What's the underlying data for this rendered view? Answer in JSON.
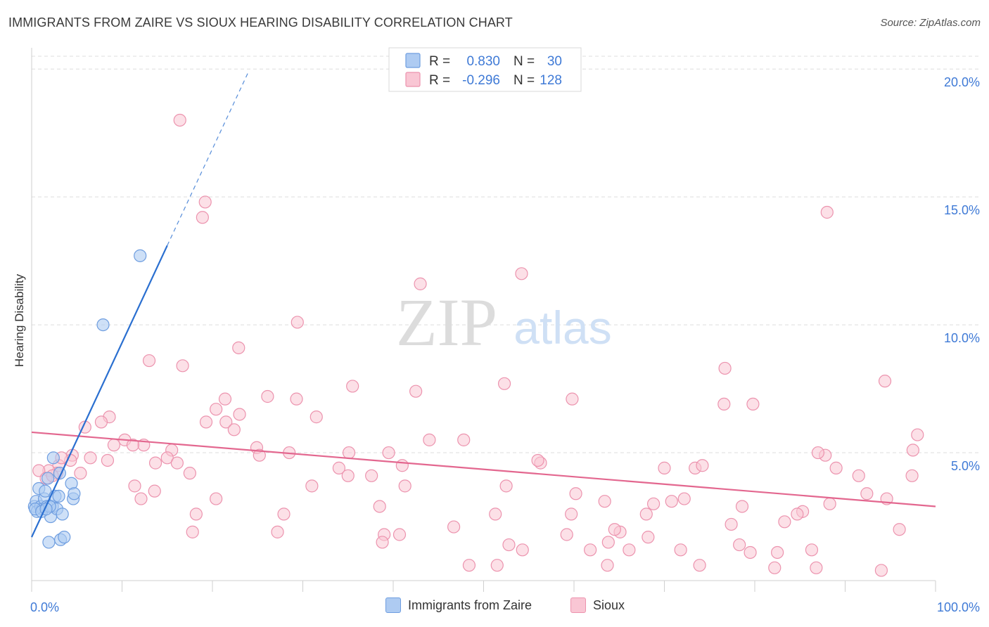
{
  "title": "IMMIGRANTS FROM ZAIRE VS SIOUX HEARING DISABILITY CORRELATION CHART",
  "source": "Source: ZipAtlas.com",
  "watermark": {
    "zip": "ZIP",
    "atlas": "atlas"
  },
  "colors": {
    "blue": "#6f9ee0",
    "blue_fill": "#aecbf2",
    "blue_line": "#2a6fd0",
    "pink": "#ec93ae",
    "pink_fill": "#f9c6d4",
    "pink_line": "#e3678f",
    "axis_text": "#3f7ad6"
  },
  "chart_data": {
    "type": "scatter",
    "title": "IMMIGRANTS FROM ZAIRE VS SIOUX HEARING DISABILITY CORRELATION CHART",
    "xlabel": "",
    "ylabel": "Hearing Disability",
    "xlim": [
      0,
      100
    ],
    "ylim": [
      0,
      20.5
    ],
    "x_tick_labels": [
      "0.0%",
      "100.0%"
    ],
    "y_ticks": [
      5,
      10,
      15,
      20
    ],
    "y_tick_labels": [
      "5.0%",
      "10.0%",
      "15.0%",
      "20.0%"
    ],
    "grid": true,
    "legend": [
      {
        "name": "Immigrants from Zaire",
        "r_label": "R =",
        "r_value": "0.830",
        "n_label": "N =",
        "n_value": "30"
      },
      {
        "name": "Sioux",
        "r_label": "R =",
        "r_value": "-0.296",
        "n_label": "N =",
        "n_value": "128"
      }
    ],
    "series": [
      {
        "name": "Immigrants from Zaire",
        "trend": {
          "x0": 0,
          "y0": 1.7,
          "x1": 15,
          "y1": 13.1,
          "dash_x1": 24,
          "dash_y1": 19.9
        },
        "points": [
          [
            0.3,
            2.9
          ],
          [
            0.5,
            3.1
          ],
          [
            0.6,
            2.7
          ],
          [
            0.8,
            3.6
          ],
          [
            1.0,
            2.9
          ],
          [
            1.2,
            2.8
          ],
          [
            1.4,
            3.2
          ],
          [
            1.5,
            3.5
          ],
          [
            1.7,
            2.9
          ],
          [
            1.8,
            4.0
          ],
          [
            1.9,
            1.5
          ],
          [
            2.1,
            2.5
          ],
          [
            2.3,
            2.9
          ],
          [
            2.4,
            4.8
          ],
          [
            2.6,
            3.3
          ],
          [
            2.8,
            2.8
          ],
          [
            3.0,
            3.3
          ],
          [
            3.2,
            1.6
          ],
          [
            3.1,
            4.2
          ],
          [
            3.4,
            2.6
          ],
          [
            3.6,
            1.7
          ],
          [
            4.4,
            3.8
          ],
          [
            4.6,
            3.2
          ],
          [
            4.7,
            3.4
          ],
          [
            0.4,
            2.8
          ],
          [
            1.1,
            2.7
          ],
          [
            2.0,
            2.9
          ],
          [
            7.9,
            10.0
          ],
          [
            12.0,
            12.7
          ],
          [
            1.6,
            2.8
          ]
        ]
      },
      {
        "name": "Sioux",
        "trend": {
          "x0": 0,
          "y0": 5.8,
          "x1": 100,
          "y1": 2.9
        },
        "points": [
          [
            16.4,
            18.0
          ],
          [
            19.2,
            14.8
          ],
          [
            18.9,
            14.2
          ],
          [
            88.0,
            14.4
          ],
          [
            43.0,
            11.6
          ],
          [
            54.2,
            12.0
          ],
          [
            29.4,
            10.1
          ],
          [
            22.9,
            9.1
          ],
          [
            13.0,
            8.6
          ],
          [
            16.7,
            8.4
          ],
          [
            76.7,
            8.3
          ],
          [
            94.4,
            7.8
          ],
          [
            35.5,
            7.6
          ],
          [
            52.3,
            7.7
          ],
          [
            42.5,
            7.4
          ],
          [
            59.8,
            7.1
          ],
          [
            26.1,
            7.2
          ],
          [
            29.3,
            7.1
          ],
          [
            76.6,
            6.9
          ],
          [
            79.8,
            6.9
          ],
          [
            21.4,
            7.1
          ],
          [
            20.4,
            6.7
          ],
          [
            23.0,
            6.5
          ],
          [
            31.5,
            6.4
          ],
          [
            8.6,
            6.4
          ],
          [
            7.7,
            6.2
          ],
          [
            19.3,
            6.2
          ],
          [
            21.5,
            6.2
          ],
          [
            22.4,
            5.9
          ],
          [
            5.9,
            6.0
          ],
          [
            98.0,
            5.7
          ],
          [
            44.0,
            5.5
          ],
          [
            47.8,
            5.5
          ],
          [
            12.4,
            5.3
          ],
          [
            10.3,
            5.5
          ],
          [
            11.2,
            5.3
          ],
          [
            9.1,
            5.3
          ],
          [
            15.5,
            5.1
          ],
          [
            24.9,
            5.2
          ],
          [
            28.5,
            5.0
          ],
          [
            35.1,
            5.0
          ],
          [
            39.5,
            5.0
          ],
          [
            87.8,
            4.9
          ],
          [
            25.2,
            4.9
          ],
          [
            15.0,
            4.8
          ],
          [
            4.5,
            4.9
          ],
          [
            4.3,
            4.7
          ],
          [
            6.5,
            4.8
          ],
          [
            8.4,
            4.7
          ],
          [
            13.7,
            4.6
          ],
          [
            16.1,
            4.6
          ],
          [
            97.5,
            5.1
          ],
          [
            87.0,
            5.0
          ],
          [
            73.4,
            4.4
          ],
          [
            74.2,
            4.5
          ],
          [
            70.0,
            4.4
          ],
          [
            41.0,
            4.5
          ],
          [
            34.0,
            4.4
          ],
          [
            56.3,
            4.6
          ],
          [
            56.0,
            4.7
          ],
          [
            3.0,
            4.5
          ],
          [
            2.8,
            4.2
          ],
          [
            1.9,
            4.3
          ],
          [
            0.8,
            4.3
          ],
          [
            1.6,
            4.0
          ],
          [
            3.3,
            4.8
          ],
          [
            2.3,
            4.1
          ],
          [
            5.4,
            4.2
          ],
          [
            17.5,
            4.2
          ],
          [
            35.0,
            4.1
          ],
          [
            37.6,
            4.1
          ],
          [
            89.0,
            4.4
          ],
          [
            91.5,
            4.1
          ],
          [
            97.4,
            4.1
          ],
          [
            11.4,
            3.7
          ],
          [
            13.6,
            3.5
          ],
          [
            31.0,
            3.7
          ],
          [
            41.3,
            3.7
          ],
          [
            52.5,
            3.7
          ],
          [
            60.2,
            3.4
          ],
          [
            72.2,
            3.2
          ],
          [
            92.4,
            3.4
          ],
          [
            94.6,
            3.2
          ],
          [
            12.1,
            3.2
          ],
          [
            20.4,
            3.2
          ],
          [
            63.4,
            3.1
          ],
          [
            70.8,
            3.1
          ],
          [
            88.3,
            3.0
          ],
          [
            68.8,
            3.0
          ],
          [
            38.5,
            2.9
          ],
          [
            78.6,
            2.9
          ],
          [
            85.3,
            2.7
          ],
          [
            18.2,
            2.6
          ],
          [
            27.9,
            2.6
          ],
          [
            51.3,
            2.6
          ],
          [
            59.7,
            2.6
          ],
          [
            68.0,
            2.6
          ],
          [
            84.7,
            2.6
          ],
          [
            83.3,
            2.3
          ],
          [
            77.4,
            2.2
          ],
          [
            96.0,
            2.0
          ],
          [
            46.7,
            2.1
          ],
          [
            27.2,
            1.9
          ],
          [
            65.1,
            1.9
          ],
          [
            59.2,
            1.8
          ],
          [
            17.8,
            1.9
          ],
          [
            39.0,
            1.8
          ],
          [
            68.2,
            1.7
          ],
          [
            78.3,
            1.4
          ],
          [
            63.8,
            1.5
          ],
          [
            52.8,
            1.4
          ],
          [
            38.8,
            1.5
          ],
          [
            54.3,
            1.2
          ],
          [
            61.8,
            1.2
          ],
          [
            66.1,
            1.2
          ],
          [
            71.8,
            1.2
          ],
          [
            79.5,
            1.1
          ],
          [
            82.5,
            1.1
          ],
          [
            86.3,
            1.2
          ],
          [
            48.4,
            0.6
          ],
          [
            51.5,
            0.6
          ],
          [
            63.7,
            0.6
          ],
          [
            73.9,
            0.6
          ],
          [
            82.2,
            0.5
          ],
          [
            86.8,
            0.5
          ],
          [
            94.0,
            0.4
          ],
          [
            40.7,
            1.8
          ],
          [
            64.5,
            2.0
          ]
        ]
      }
    ]
  }
}
